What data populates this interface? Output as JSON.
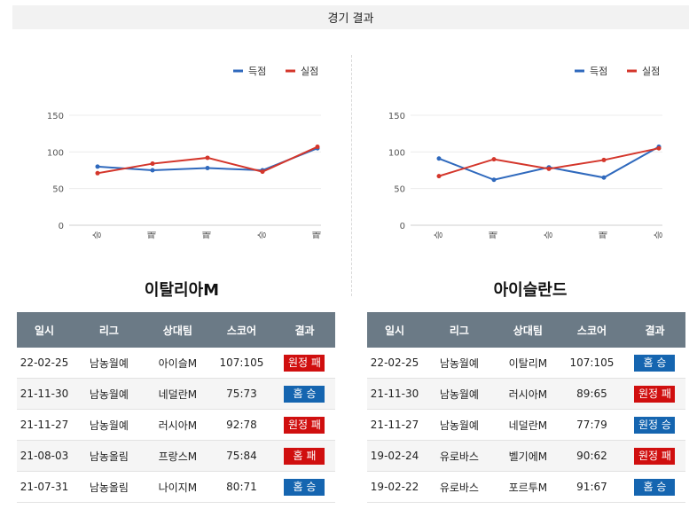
{
  "header": {
    "title": "경기 결과"
  },
  "legend": {
    "scored": "득점",
    "conceded": "실점"
  },
  "colors": {
    "scored": "#2f69bd",
    "conceded": "#d4362b",
    "win": "#1565b0",
    "loss": "#d00f0f",
    "table_header": "#6b7a86"
  },
  "chart_data": [
    {
      "type": "line",
      "categories": [
        "승",
        "패",
        "패",
        "승",
        "패"
      ],
      "ylim": [
        0,
        150
      ],
      "yticks": [
        0,
        50,
        100,
        150
      ],
      "series": [
        {
          "name": "득점",
          "values": [
            80,
            75,
            78,
            75,
            105
          ]
        },
        {
          "name": "실점",
          "values": [
            71,
            84,
            92,
            73,
            107
          ]
        }
      ]
    },
    {
      "type": "line",
      "categories": [
        "승",
        "패",
        "승",
        "패",
        "승"
      ],
      "ylim": [
        0,
        150
      ],
      "yticks": [
        0,
        50,
        100,
        150
      ],
      "series": [
        {
          "name": "득점",
          "values": [
            91,
            62,
            79,
            65,
            107
          ]
        },
        {
          "name": "실점",
          "values": [
            67,
            90,
            77,
            89,
            105
          ]
        }
      ]
    }
  ],
  "teams": [
    {
      "name": "이탈리아M",
      "columns": [
        "일시",
        "리그",
        "상대팀",
        "스코어",
        "결과"
      ],
      "rows": [
        {
          "date": "22-02-25",
          "league": "남농월예",
          "opponent": "아이슬M",
          "score": "107:105",
          "result": "원정 패",
          "outcome": "loss"
        },
        {
          "date": "21-11-30",
          "league": "남농월예",
          "opponent": "네덜란M",
          "score": "75:73",
          "result": "홈 승",
          "outcome": "win"
        },
        {
          "date": "21-11-27",
          "league": "남농월예",
          "opponent": "러시아M",
          "score": "92:78",
          "result": "원정 패",
          "outcome": "loss"
        },
        {
          "date": "21-08-03",
          "league": "남농올림",
          "opponent": "프랑스M",
          "score": "75:84",
          "result": "홈 패",
          "outcome": "loss"
        },
        {
          "date": "21-07-31",
          "league": "남농올림",
          "opponent": "나이지M",
          "score": "80:71",
          "result": "홈 승",
          "outcome": "win"
        }
      ]
    },
    {
      "name": "아이슬란드",
      "columns": [
        "일시",
        "리그",
        "상대팀",
        "스코어",
        "결과"
      ],
      "rows": [
        {
          "date": "22-02-25",
          "league": "남농월예",
          "opponent": "이탈리M",
          "score": "107:105",
          "result": "홈 승",
          "outcome": "win"
        },
        {
          "date": "21-11-30",
          "league": "남농월예",
          "opponent": "러시아M",
          "score": "89:65",
          "result": "원정 패",
          "outcome": "loss"
        },
        {
          "date": "21-11-27",
          "league": "남농월예",
          "opponent": "네덜란M",
          "score": "77:79",
          "result": "원정 승",
          "outcome": "win"
        },
        {
          "date": "19-02-24",
          "league": "유로바스",
          "opponent": "벨기에M",
          "score": "90:62",
          "result": "원정 패",
          "outcome": "loss"
        },
        {
          "date": "19-02-22",
          "league": "유로바스",
          "opponent": "포르투M",
          "score": "91:67",
          "result": "홈 승",
          "outcome": "win"
        }
      ]
    }
  ]
}
